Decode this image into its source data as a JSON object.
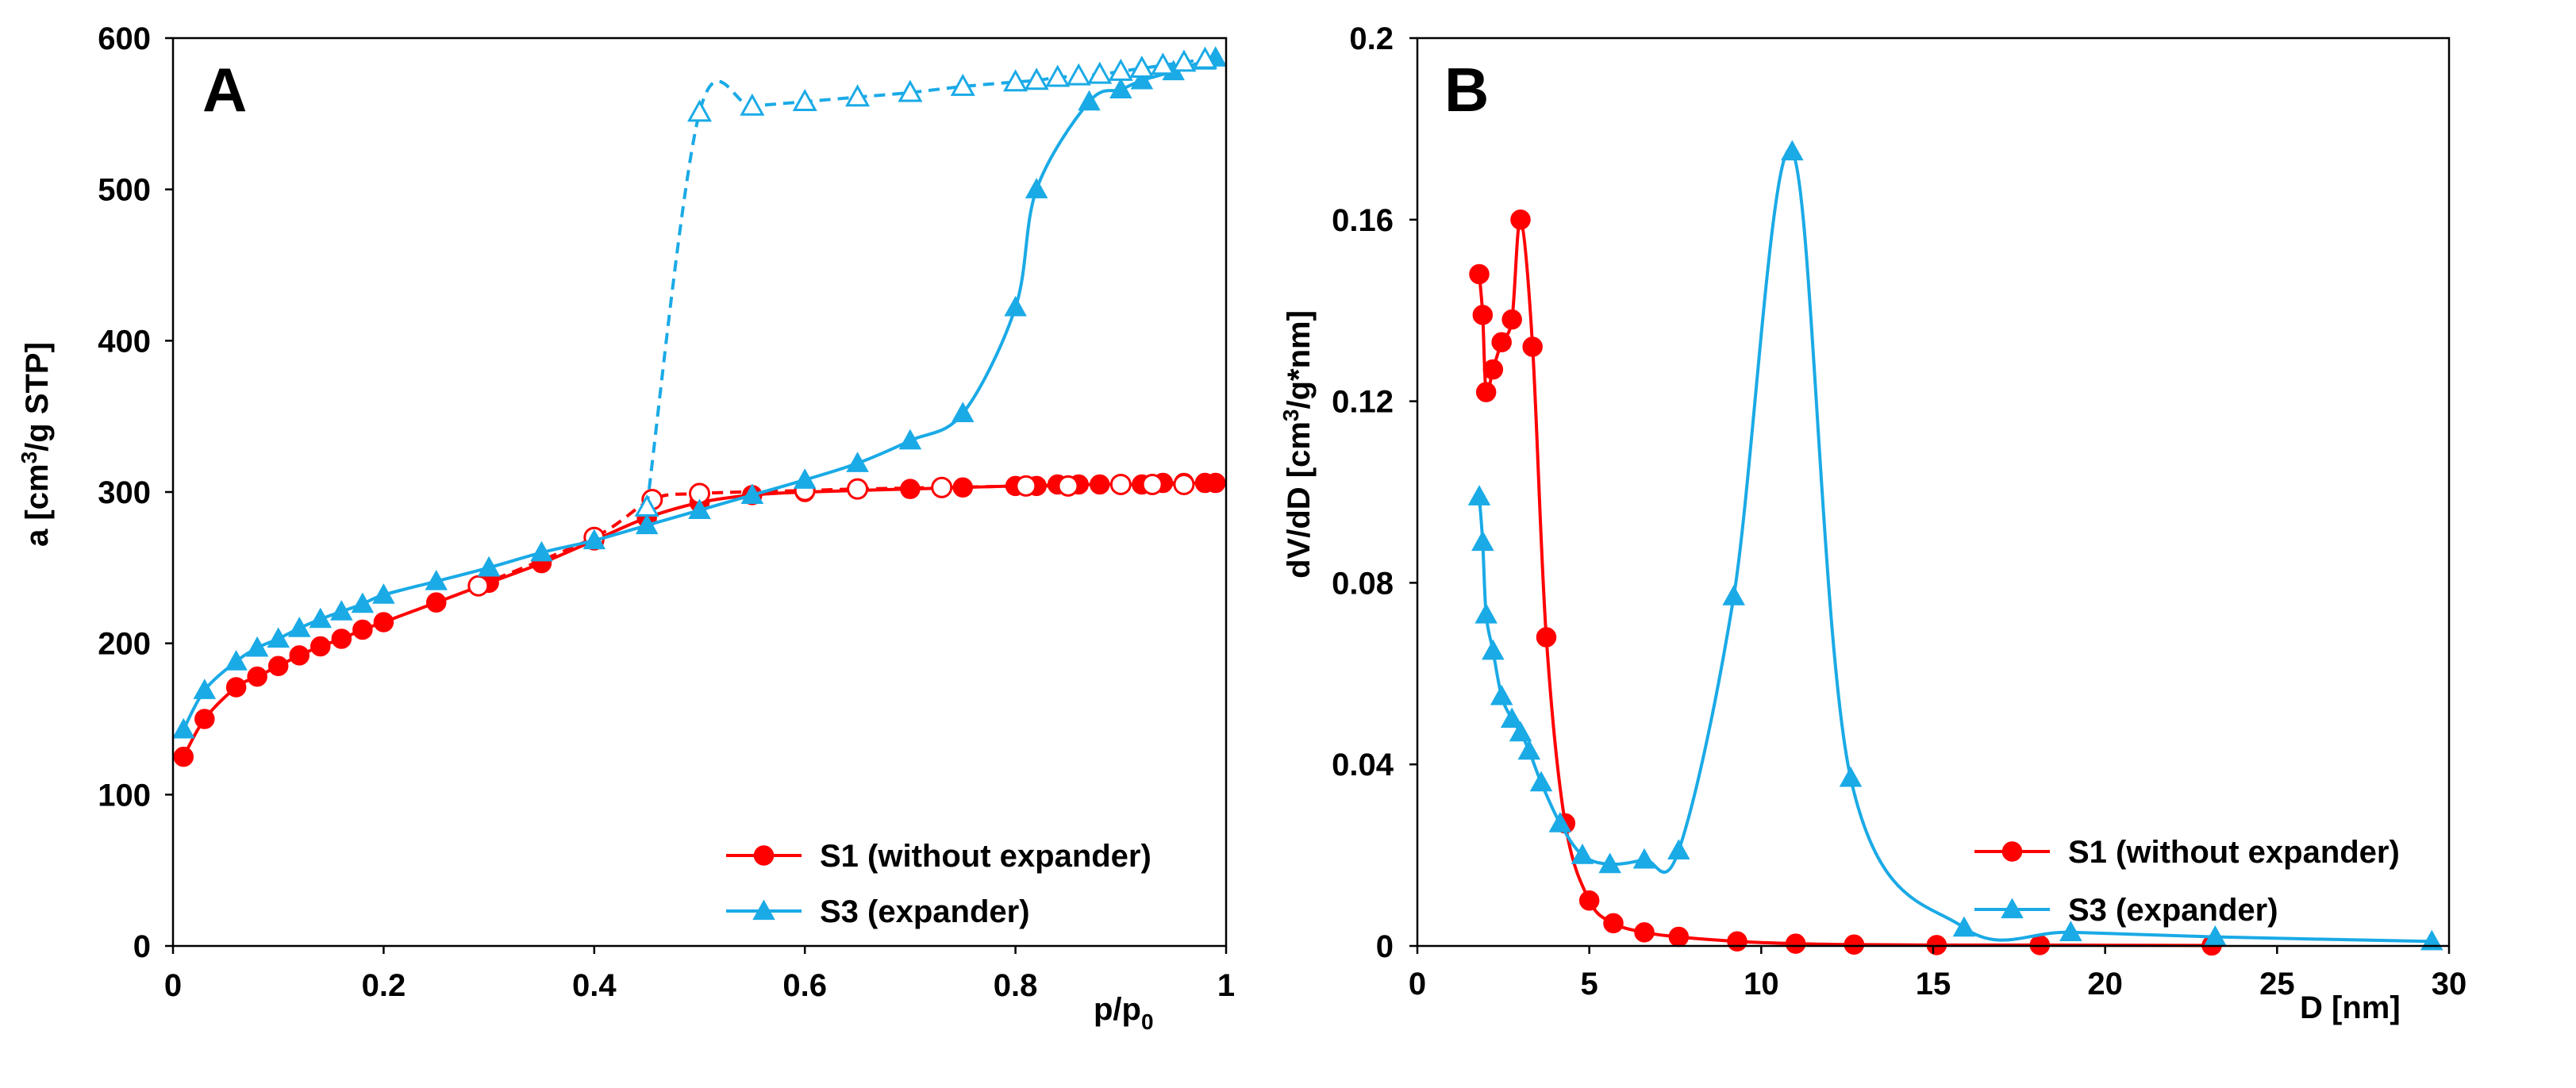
{
  "colors": {
    "s1": "#ff0000",
    "s3": "#1aaae6",
    "axis": "#000000"
  },
  "chart_data": [
    {
      "type": "line",
      "panel": "A",
      "title": "",
      "xlabel": "p/p",
      "xlabel_sub": "0",
      "ylabel_pre": "a [cm",
      "ylabel_sup": "3",
      "ylabel_post": "/g STP]",
      "xlim": [
        0,
        1
      ],
      "ylim": [
        0,
        600
      ],
      "xticks": [
        0,
        0.2,
        0.4,
        0.6,
        0.8,
        1
      ],
      "xtick_labels": [
        "0",
        "0.2",
        "0.4",
        "0.6",
        "0.8",
        "1"
      ],
      "yticks": [
        0,
        100,
        200,
        300,
        400,
        500,
        600
      ],
      "ytick_labels": [
        "0",
        "100",
        "200",
        "300",
        "400",
        "500",
        "600"
      ],
      "grid": false,
      "legend_position": "bottom-right",
      "series": [
        {
          "name": "S1 (without expander)",
          "color_key": "s1",
          "marker": "circle",
          "filled": true,
          "dashed": false,
          "in_legend": true,
          "x": [
            0.01,
            0.03,
            0.06,
            0.08,
            0.1,
            0.12,
            0.14,
            0.16,
            0.18,
            0.2,
            0.25,
            0.3,
            0.35,
            0.4,
            0.45,
            0.5,
            0.55,
            0.6,
            0.7,
            0.75,
            0.8,
            0.82,
            0.84,
            0.86,
            0.88,
            0.9,
            0.92,
            0.94,
            0.96,
            0.98,
            0.99
          ],
          "y": [
            125,
            150,
            171,
            178,
            185,
            192,
            198,
            203,
            209,
            214,
            227,
            240,
            253,
            268,
            283,
            293,
            298,
            300,
            302,
            303,
            304,
            304,
            305,
            305,
            305,
            305,
            305,
            306,
            306,
            306,
            306
          ]
        },
        {
          "name": "S1 desorption",
          "color_key": "s1",
          "marker": "circle",
          "filled": false,
          "dashed": true,
          "in_legend": false,
          "x": [
            0.29,
            0.4,
            0.455,
            0.5,
            0.6,
            0.65,
            0.73,
            0.81,
            0.85,
            0.9,
            0.93,
            0.96
          ],
          "y": [
            238,
            270,
            295,
            299,
            301,
            302,
            303,
            304,
            304,
            305,
            305,
            305
          ]
        },
        {
          "name": "S3 (expander)",
          "color_key": "s3",
          "marker": "triangle",
          "filled": true,
          "dashed": false,
          "in_legend": true,
          "x": [
            0.01,
            0.03,
            0.06,
            0.08,
            0.1,
            0.12,
            0.14,
            0.16,
            0.18,
            0.2,
            0.25,
            0.3,
            0.35,
            0.4,
            0.45,
            0.5,
            0.55,
            0.6,
            0.65,
            0.7,
            0.75,
            0.8,
            0.82,
            0.87,
            0.9,
            0.92,
            0.95,
            0.98,
            0.99
          ],
          "y": [
            143,
            169,
            188,
            197,
            203,
            210,
            216,
            221,
            226,
            232,
            241,
            250,
            260,
            268,
            278,
            288,
            298,
            308,
            319,
            334,
            352,
            422,
            500,
            558,
            566,
            572,
            578,
            585,
            587
          ]
        },
        {
          "name": "S3 desorption",
          "color_key": "s3",
          "marker": "triangle",
          "filled": false,
          "dashed": true,
          "in_legend": false,
          "x": [
            0.45,
            0.5,
            0.55,
            0.6,
            0.65,
            0.7,
            0.75,
            0.8,
            0.82,
            0.84,
            0.86,
            0.88,
            0.9,
            0.92,
            0.94,
            0.96,
            0.98
          ],
          "y": [
            290,
            551,
            555,
            558,
            561,
            564,
            568,
            571,
            572,
            574,
            575,
            576,
            578,
            580,
            582,
            584,
            586
          ]
        }
      ]
    },
    {
      "type": "line",
      "panel": "B",
      "title": "",
      "xlabel": "D [nm]",
      "ylabel_pre": "dV/dD [cm",
      "ylabel_sup": "3",
      "ylabel_post": "/g*nm]",
      "xlim": [
        0,
        30
      ],
      "ylim": [
        0,
        0.2
      ],
      "xticks": [
        0,
        5,
        10,
        15,
        20,
        25,
        30
      ],
      "xtick_labels": [
        "0",
        "5",
        "10",
        "15",
        "20",
        "25",
        "30"
      ],
      "yticks": [
        0,
        0.04,
        0.08,
        0.12,
        0.16,
        0.2
      ],
      "ytick_labels": [
        "0",
        "0.04",
        "0.08",
        "0.12",
        "0.16",
        "0.2"
      ],
      "grid": false,
      "legend_position": "bottom-right",
      "series": [
        {
          "name": "S1 (without expander)",
          "color_key": "s1",
          "marker": "circle",
          "filled": true,
          "dashed": false,
          "in_legend": true,
          "x": [
            1.8,
            1.9,
            2.0,
            2.2,
            2.45,
            2.75,
            3.0,
            3.35,
            3.75,
            4.3,
            5.0,
            5.7,
            6.6,
            7.6,
            9.3,
            11.0,
            12.7,
            15.1,
            18.1,
            23.1
          ],
          "y": [
            0.148,
            0.139,
            0.122,
            0.127,
            0.133,
            0.138,
            0.16,
            0.132,
            0.068,
            0.027,
            0.01,
            0.005,
            0.003,
            0.002,
            0.001,
            0.0005,
            0.0003,
            0.0002,
            0.0002,
            0.0001
          ]
        },
        {
          "name": "S3 (expander)",
          "color_key": "s3",
          "marker": "triangle",
          "filled": true,
          "dashed": false,
          "in_legend": true,
          "x": [
            1.8,
            1.9,
            2.0,
            2.2,
            2.45,
            2.75,
            3.0,
            3.25,
            3.6,
            4.15,
            4.8,
            5.6,
            6.6,
            7.6,
            9.2,
            10.9,
            12.6,
            15.9,
            19.0,
            23.2,
            29.5
          ],
          "y": [
            0.099,
            0.089,
            0.073,
            0.065,
            0.055,
            0.05,
            0.047,
            0.043,
            0.036,
            0.027,
            0.02,
            0.018,
            0.019,
            0.021,
            0.077,
            0.175,
            0.037,
            0.004,
            0.003,
            0.002,
            0.001
          ]
        }
      ]
    }
  ]
}
